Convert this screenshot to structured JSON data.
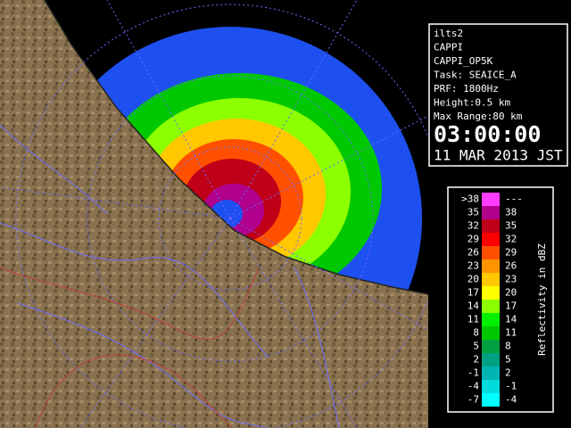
{
  "info": {
    "lines": [
      "ilts2",
      "CAPPI",
      "CAPPI_OP5K",
      "Task: SEAICE_A",
      "PRF: 1800Hz",
      "Height:0.5 km",
      "Max Range:80 km"
    ],
    "time": "03:00:00",
    "date": "11 MAR 2013 JST"
  },
  "legend": {
    "title": "Reflectivity in dBZ",
    "rows": [
      {
        "low": ">38",
        "high": "---",
        "color": "#ff3cff"
      },
      {
        "low": "35",
        "high": "38",
        "color": "#b0008c"
      },
      {
        "low": "32",
        "high": "35",
        "color": "#c00018"
      },
      {
        "low": "29",
        "high": "32",
        "color": "#ff0000"
      },
      {
        "low": "26",
        "high": "29",
        "color": "#ff5000"
      },
      {
        "low": "23",
        "high": "26",
        "color": "#ff9400"
      },
      {
        "low": "20",
        "high": "23",
        "color": "#ffc800"
      },
      {
        "low": "17",
        "high": "20",
        "color": "#ffff00"
      },
      {
        "low": "14",
        "high": "17",
        "color": "#8cff00"
      },
      {
        "low": "11",
        "high": "14",
        "color": "#00f000"
      },
      {
        "low": "8",
        "high": "11",
        "color": "#00c800"
      },
      {
        "low": "5",
        "high": "8",
        "color": "#00a040"
      },
      {
        "low": "2",
        "high": "5",
        "color": "#00a080"
      },
      {
        "low": "-1",
        "high": "2",
        "color": "#00b4b4"
      },
      {
        "low": "-4",
        "high": "-1",
        "color": "#00dcdc"
      },
      {
        "low": "-7",
        "high": "-4",
        "color": "#00ffff"
      }
    ]
  }
}
